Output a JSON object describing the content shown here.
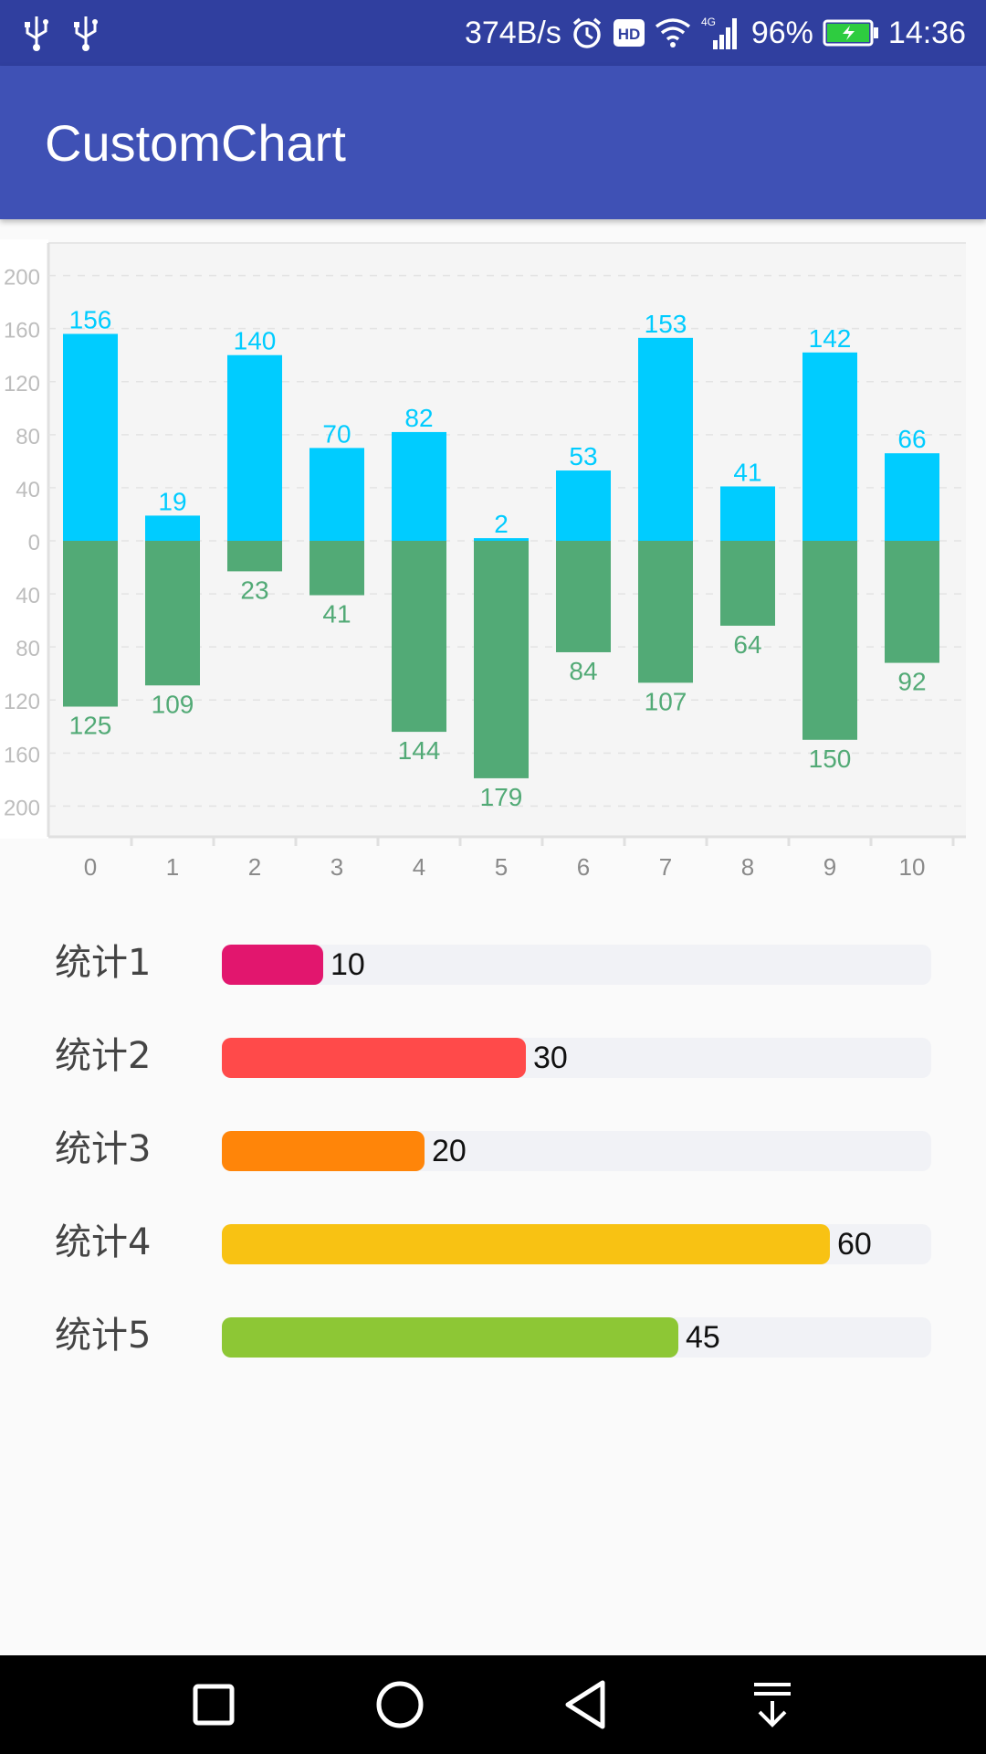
{
  "status_bar": {
    "net_speed": "374B/s",
    "signal_label": "4G",
    "hd_label": "HD",
    "battery_percent": "96%",
    "time": "14:36",
    "icons": [
      "usb-icon",
      "usb-icon",
      "alarm-icon",
      "hd-icon",
      "wifi-icon",
      "signal-icon",
      "battery-charging-icon"
    ]
  },
  "app_bar": {
    "title": "CustomChart"
  },
  "chart_data": {
    "type": "bar",
    "categories": [
      "0",
      "1",
      "2",
      "3",
      "4",
      "5",
      "6",
      "7",
      "8",
      "9",
      "10"
    ],
    "series": [
      {
        "values": [
          156,
          19,
          140,
          70,
          82,
          2,
          53,
          153,
          41,
          142,
          66
        ],
        "color": "#00ccff",
        "direction": "up"
      },
      {
        "values": [
          125,
          109,
          23,
          41,
          144,
          179,
          84,
          107,
          64,
          150,
          92
        ],
        "color": "#52aa76",
        "direction": "down"
      }
    ],
    "y_tick_labels": [
      "200",
      "160",
      "120",
      "80",
      "40",
      "0",
      "40",
      "80",
      "120",
      "160",
      "200"
    ],
    "ylim": [
      -200,
      200
    ],
    "grid": "horizontal dashed",
    "xlabel": "",
    "ylabel": "",
    "title": ""
  },
  "progress": {
    "max": 70,
    "items": [
      {
        "label": "统计1",
        "value": 10,
        "value_text": "10",
        "color": "#e2166e"
      },
      {
        "label": "统计2",
        "value": 30,
        "value_text": "30",
        "color": "#ff4a4a"
      },
      {
        "label": "统计3",
        "value": 20,
        "value_text": "20",
        "color": "#ff8509"
      },
      {
        "label": "统计4",
        "value": 60,
        "value_text": "60",
        "color": "#f8c213"
      },
      {
        "label": "统计5",
        "value": 45,
        "value_text": "45",
        "color": "#8dc735"
      }
    ]
  },
  "nav_bar": {
    "icons": [
      "recent-apps-icon",
      "home-icon",
      "back-icon",
      "notification-pull-icon"
    ]
  },
  "colors": {
    "status_bar": "#303f9f",
    "app_bar": "#3f51b5",
    "positive_bar": "#00ccff",
    "negative_bar": "#52aa76"
  }
}
